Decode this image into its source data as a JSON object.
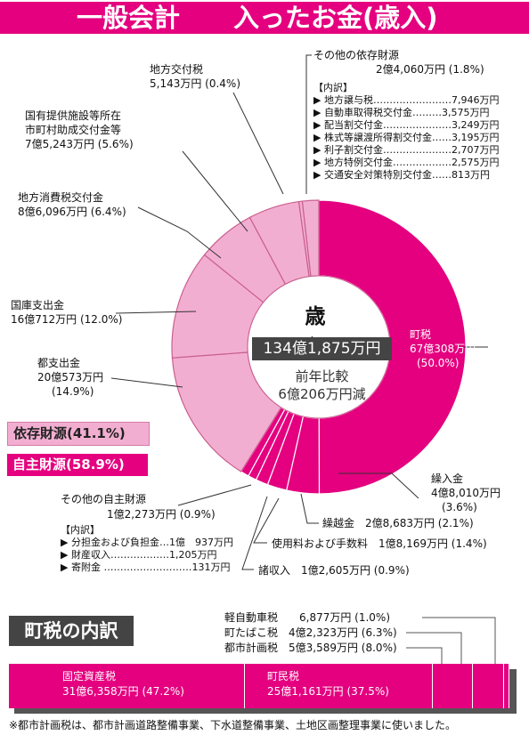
{
  "header": {
    "title_left": "一般会計",
    "title_right": "入ったお金(歳入)"
  },
  "center": {
    "title": "歳　入",
    "total": "134億1,875万円",
    "compare_line1": "前年比較",
    "compare_line2": "6億206万円減"
  },
  "categories_legend": {
    "dependent": "依存財源(41.1%)",
    "independent": "自主財源(58.9%)"
  },
  "labels": {
    "town_tax": {
      "name": "町税",
      "amount": "67億308万円",
      "pct": "(50.0%)"
    },
    "carry_in": {
      "name": "繰入金",
      "amount": "4億8,010万円",
      "pct": "(3.6%)"
    },
    "carry_over": "繰越金　2億8,683万円 (2.1%)",
    "fees": "使用料および手数料　1億8,169万円 (1.4%)",
    "misc": "諸収入　1億2,605万円 (0.9%)",
    "other_own": {
      "name": "その他の自主財源",
      "amount": "1億2,273万円 (0.9%)"
    },
    "pref": {
      "name": "都支出金",
      "amount": "20億573万円",
      "pct": "(14.9%)"
    },
    "national": {
      "name": "国庫支出金",
      "amount": "16億712万円 (12.0%)"
    },
    "consumption": {
      "name": "地方消費税交付金",
      "amount": "8億6,096万円 (6.4%)"
    },
    "facility": {
      "name1": "国有提供施設等所在",
      "name2": "市町村助成交付金等",
      "amount": "7億5,243万円 (5.6%)"
    },
    "local_grant": {
      "name": "地方交付税",
      "amount": "5,143万円 (0.4%)"
    },
    "other_dep": {
      "name": "その他の依存財源",
      "amount": "2億4,060万円 (1.8%)"
    }
  },
  "other_dep_breakdown": {
    "heading": "【内訳】",
    "items": [
      "▶ 地方譲与税……………………7,946万円",
      "▶ 自動車取得税交付金………3,575万円",
      "▶ 配当割交付金…………………3,249万円",
      "▶ 株式等譲渡所得割交付金……3,195万円",
      "▶ 利子割交付金…………………2,707万円",
      "▶ 地方特例交付金………………2,575万円",
      "▶ 交通安全対策特別交付金……813万円"
    ]
  },
  "other_own_breakdown": {
    "heading": "【内訳】",
    "items": [
      "▶ 分担金および負担金…1億　937万円",
      "▶ 財産収入………………1,205万円",
      "▶ 寄附金 ………………………131万円"
    ]
  },
  "town_tax_section": {
    "heading": "町税の内訳",
    "small_items": [
      "軽自動車税　　6,877万円 (1.0%)",
      "町たばこ税　4億2,323万円 (6.3%)",
      "都市計画税　5億3,589万円 (8.0%)"
    ],
    "bar_labels": {
      "fixed_asset": {
        "name": "固定資産税",
        "amount": "31億6,358万円 (47.2%)"
      },
      "resident": {
        "name": "町民税",
        "amount": "25億1,161万円 (37.5%)"
      }
    },
    "footnote": "※都市計画税は、都市計画道路整備事業、下水道整備事業、土地区画整理事業に使いました。"
  },
  "colors": {
    "accent": "#e4007f",
    "dependent": "#f2aed1",
    "dark_box": "#444444"
  },
  "chart_data": [
    {
      "type": "pie",
      "title": "歳入",
      "unit": "万円",
      "slices": [
        {
          "name": "町税",
          "value": 670308,
          "pct": 50.0,
          "group": "自主財源"
        },
        {
          "name": "繰入金",
          "value": 48010,
          "pct": 3.6,
          "group": "自主財源"
        },
        {
          "name": "繰越金",
          "value": 28683,
          "pct": 2.1,
          "group": "自主財源"
        },
        {
          "name": "使用料および手数料",
          "value": 18169,
          "pct": 1.4,
          "group": "自主財源"
        },
        {
          "name": "諸収入",
          "value": 12605,
          "pct": 0.9,
          "group": "自主財源"
        },
        {
          "name": "その他の自主財源",
          "value": 12273,
          "pct": 0.9,
          "group": "自主財源"
        },
        {
          "name": "都支出金",
          "value": 200573,
          "pct": 14.9,
          "group": "依存財源"
        },
        {
          "name": "国庫支出金",
          "value": 160712,
          "pct": 12.0,
          "group": "依存財源"
        },
        {
          "name": "地方消費税交付金",
          "value": 86096,
          "pct": 6.4,
          "group": "依存財源"
        },
        {
          "name": "国有提供施設等所在市町村助成交付金等",
          "value": 75243,
          "pct": 5.6,
          "group": "依存財源"
        },
        {
          "name": "地方交付税",
          "value": 5143,
          "pct": 0.4,
          "group": "依存財源"
        },
        {
          "name": "その他の依存財源",
          "value": 24060,
          "pct": 1.8,
          "group": "依存財源"
        }
      ],
      "total": 1341875
    },
    {
      "type": "bar",
      "title": "町税の内訳",
      "unit": "万円",
      "categories": [
        "固定資産税",
        "町民税",
        "都市計画税",
        "町たばこ税",
        "軽自動車税"
      ],
      "values": [
        316358,
        251161,
        53589,
        42323,
        6877
      ],
      "pct": [
        47.2,
        37.5,
        8.0,
        6.3,
        1.0
      ]
    }
  ]
}
